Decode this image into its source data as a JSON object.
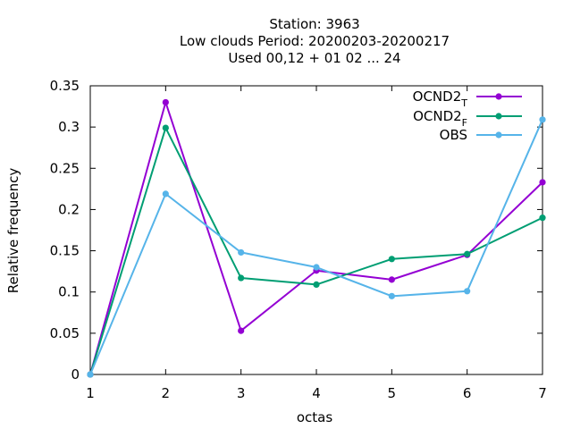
{
  "chart_data": {
    "type": "line",
    "title_lines": [
      "Station:      3963",
      "Low clouds  Period: 20200203-20200217",
      "Used  00,12  + 01 02 ... 24"
    ],
    "xlabel": "octas",
    "ylabel": "Relative frequency",
    "x": [
      1,
      2,
      3,
      4,
      5,
      6,
      7
    ],
    "xlim": [
      1,
      7
    ],
    "ylim": [
      0,
      0.35
    ],
    "yticks": [
      0,
      0.05,
      0.1,
      0.15,
      0.2,
      0.25,
      0.3,
      0.35
    ],
    "ytick_labels": [
      "0",
      "0.05",
      "0.1",
      "0.15",
      "0.2",
      "0.25",
      "0.3",
      "0.35"
    ],
    "xtick_labels": [
      "1",
      "2",
      "3",
      "4",
      "5",
      "6",
      "7"
    ],
    "grid": false,
    "legend_placement": "top-right",
    "series": [
      {
        "name": "OCND2",
        "subscript": "T",
        "color": "#9400d3",
        "values": [
          0.0,
          0.33,
          0.053,
          0.126,
          0.115,
          0.145,
          0.233
        ]
      },
      {
        "name": "OCND2",
        "subscript": "F",
        "color": "#009e73",
        "values": [
          0.0,
          0.299,
          0.117,
          0.109,
          0.14,
          0.146,
          0.19
        ]
      },
      {
        "name": "OBS",
        "subscript": "",
        "color": "#56b4e9",
        "values": [
          0.0,
          0.219,
          0.148,
          0.13,
          0.095,
          0.101,
          0.309
        ]
      }
    ]
  }
}
